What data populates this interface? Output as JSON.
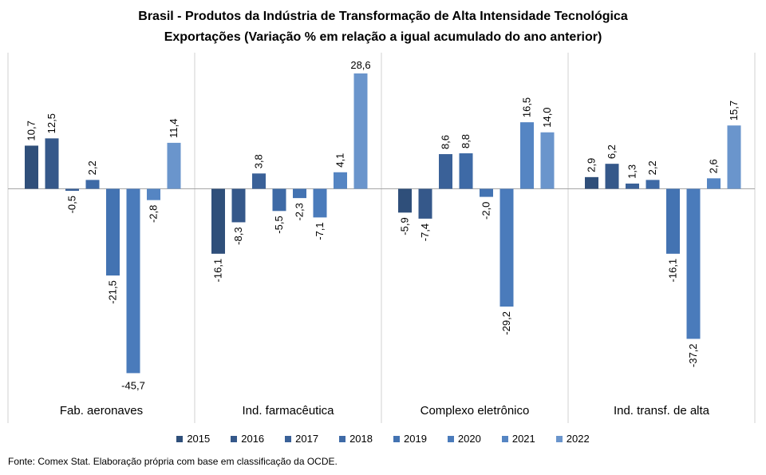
{
  "chart_data": {
    "type": "bar",
    "title": "Brasil - Produtos da Indústria de Transformação  de Alta Intensidade Tecnológica",
    "subtitle": "Exportações (Variação % em relação a igual acumulado do ano anterior)",
    "categories": [
      "Fab. aeronaves",
      "Ind. farmacêutica",
      "Complexo eletrônico",
      "Ind. transf. de alta"
    ],
    "series": [
      {
        "name": "2015",
        "color": "#2f4f7a",
        "values": [
          10.7,
          -16.1,
          -5.9,
          2.9
        ]
      },
      {
        "name": "2016",
        "color": "#35588a",
        "values": [
          12.5,
          -8.3,
          -7.4,
          6.2
        ]
      },
      {
        "name": "2017",
        "color": "#3a6198",
        "values": [
          -0.5,
          3.8,
          8.6,
          1.3
        ]
      },
      {
        "name": "2018",
        "color": "#3e6aa6",
        "values": [
          2.2,
          -5.5,
          8.8,
          2.2
        ]
      },
      {
        "name": "2019",
        "color": "#4373b2",
        "values": [
          -21.5,
          -2.3,
          -2.0,
          -16.1
        ]
      },
      {
        "name": "2020",
        "color": "#4a7bbb",
        "values": [
          -45.7,
          -7.1,
          -29.2,
          -37.2
        ]
      },
      {
        "name": "2021",
        "color": "#5585c3",
        "values": [
          -2.8,
          4.1,
          16.5,
          2.6
        ]
      },
      {
        "name": "2022",
        "color": "#6a95cc",
        "values": [
          11.4,
          28.6,
          14.0,
          15.7
        ]
      }
    ],
    "labels": [
      [
        "10,7",
        "-16,1",
        "-5,9",
        "2,9"
      ],
      [
        "12,5",
        "-8,3",
        "-7,4",
        "6,2"
      ],
      [
        "-0,5",
        "3,8",
        "8,6",
        "1,3"
      ],
      [
        "2,2",
        "-5,5",
        "8,8",
        "2,2"
      ],
      [
        "-21,5",
        "-2,3",
        "-2,0",
        "-16,1"
      ],
      [
        "-45,7",
        "-7,1",
        "-29,2",
        "-37,2"
      ],
      [
        "-2,8",
        "4,1",
        "16,5",
        "2,6"
      ],
      [
        "11,4",
        "28,6",
        "14,0",
        "15,7"
      ]
    ],
    "ylim": [
      -45.7,
      28.6
    ],
    "grid": false,
    "legend_position": "bottom"
  },
  "source": "Fonte: Comex Stat. Elaboração própria com base em classificação da OCDE."
}
